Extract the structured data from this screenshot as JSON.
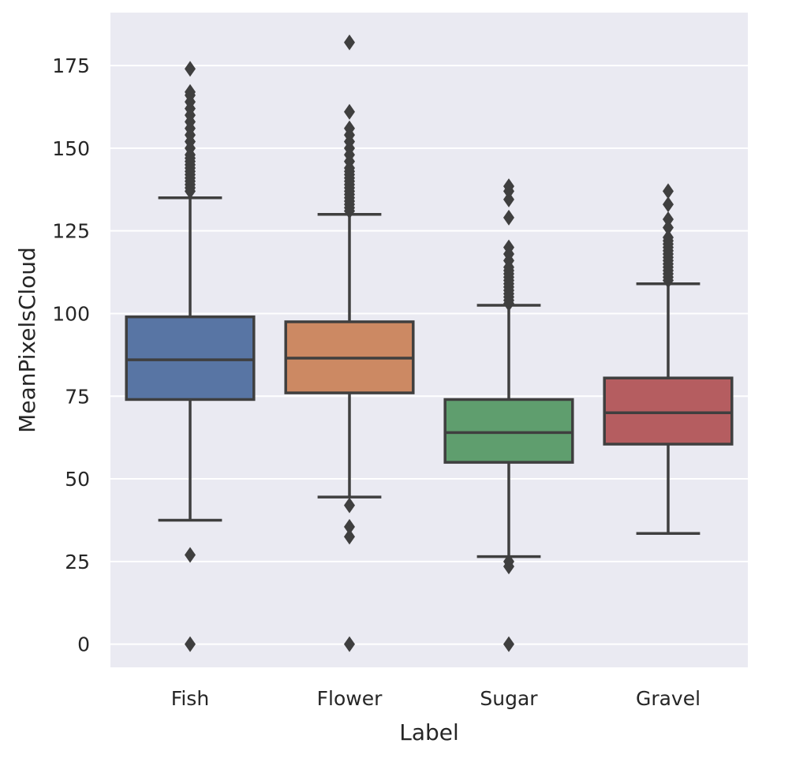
{
  "chart_data": {
    "type": "box",
    "xlabel": "Label",
    "ylabel": "MeanPixelsCloud",
    "ylim": [
      -7,
      191
    ],
    "yticks": [
      0,
      25,
      50,
      75,
      100,
      125,
      150,
      175
    ],
    "grid": true,
    "background": "#eaeaf2",
    "line_color": "#3f3f3f",
    "categories": [
      "Fish",
      "Flower",
      "Sugar",
      "Gravel"
    ],
    "boxes": [
      {
        "label": "Fish",
        "color": "#5875a4",
        "whisker_low": 37.5,
        "q1": 74,
        "median": 86,
        "q3": 99,
        "whisker_high": 135,
        "outliers": [
          0,
          27,
          137,
          138,
          139,
          140,
          141,
          142,
          143,
          144,
          145,
          146,
          147,
          148,
          150,
          152,
          154,
          156,
          158,
          160,
          162,
          164,
          166,
          167,
          174
        ]
      },
      {
        "label": "Flower",
        "color": "#cc8963",
        "whisker_low": 44.5,
        "q1": 76,
        "median": 86.5,
        "q3": 97.5,
        "whisker_high": 130,
        "outliers": [
          0,
          32.5,
          35.5,
          42,
          131,
          132,
          133,
          134,
          135,
          136,
          137,
          138,
          139,
          140,
          141,
          142,
          143,
          144,
          146,
          148,
          150,
          152,
          154,
          156,
          161,
          182
        ]
      },
      {
        "label": "Sugar",
        "color": "#5f9e6e",
        "whisker_low": 26.5,
        "q1": 55,
        "median": 64,
        "q3": 74,
        "whisker_high": 102.5,
        "outliers": [
          0,
          23.5,
          25,
          103,
          104,
          105,
          106,
          107,
          108,
          109,
          110,
          111,
          112,
          113,
          114,
          116,
          118,
          120,
          129,
          134.5,
          137,
          138.5
        ]
      },
      {
        "label": "Gravel",
        "color": "#b55d60",
        "whisker_low": 33.5,
        "q1": 60.5,
        "median": 70,
        "q3": 80.5,
        "whisker_high": 109,
        "outliers": [
          110,
          111,
          112,
          113,
          114,
          115,
          116,
          117,
          118,
          119,
          120,
          121,
          122,
          123,
          126,
          128.5,
          133,
          137
        ]
      }
    ]
  }
}
